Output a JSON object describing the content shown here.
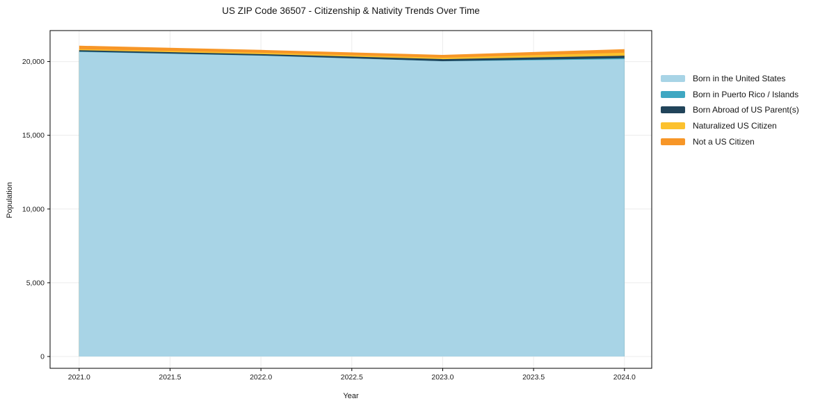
{
  "chart": {
    "title": "US ZIP Code 36507 - Citizenship & Nativity Trends Over Time",
    "xlabel": "Year",
    "ylabel": "Population"
  },
  "chart_data": {
    "type": "area",
    "stacked": true,
    "title": "US ZIP Code 36507 - Citizenship & Nativity Trends Over Time",
    "xlabel": "Year",
    "ylabel": "Population",
    "x": [
      2021,
      2022,
      2023,
      2024
    ],
    "series": [
      {
        "name": "Born in the United States",
        "color": "#a8d4e6",
        "values": [
          20650,
          20400,
          20020,
          20160
        ]
      },
      {
        "name": "Born in Puerto Rico / Islands",
        "color": "#3fa7c2",
        "values": [
          25,
          10,
          5,
          70
        ]
      },
      {
        "name": "Born Abroad of US Parent(s)",
        "color": "#21445a",
        "values": [
          95,
          95,
          140,
          165
        ]
      },
      {
        "name": "Naturalized US Citizen",
        "color": "#fcc12e",
        "values": [
          70,
          95,
          95,
          210
        ]
      },
      {
        "name": "Not a US Citizen",
        "color": "#f79627",
        "values": [
          235,
          190,
          190,
          235
        ]
      }
    ],
    "x_ticks": {
      "values": [
        2021.0,
        2021.5,
        2022.0,
        2022.5,
        2023.0,
        2023.5,
        2024.0
      ],
      "labels": [
        "2021.0",
        "2021.5",
        "2022.0",
        "2022.5",
        "2023.0",
        "2023.5",
        "2024.0"
      ]
    },
    "y_ticks": {
      "values": [
        0,
        5000,
        10000,
        15000,
        20000
      ],
      "labels": [
        "0",
        "5,000",
        "10,000",
        "15,000",
        "20,000"
      ]
    },
    "xlim": [
      2020.84,
      2024.15
    ],
    "ylim": [
      -800,
      22100
    ],
    "grid": true,
    "grid_color": "#ececec",
    "spine_color": "#000000",
    "tick_label_color": "#1a1a1a",
    "legend_position": "right"
  }
}
